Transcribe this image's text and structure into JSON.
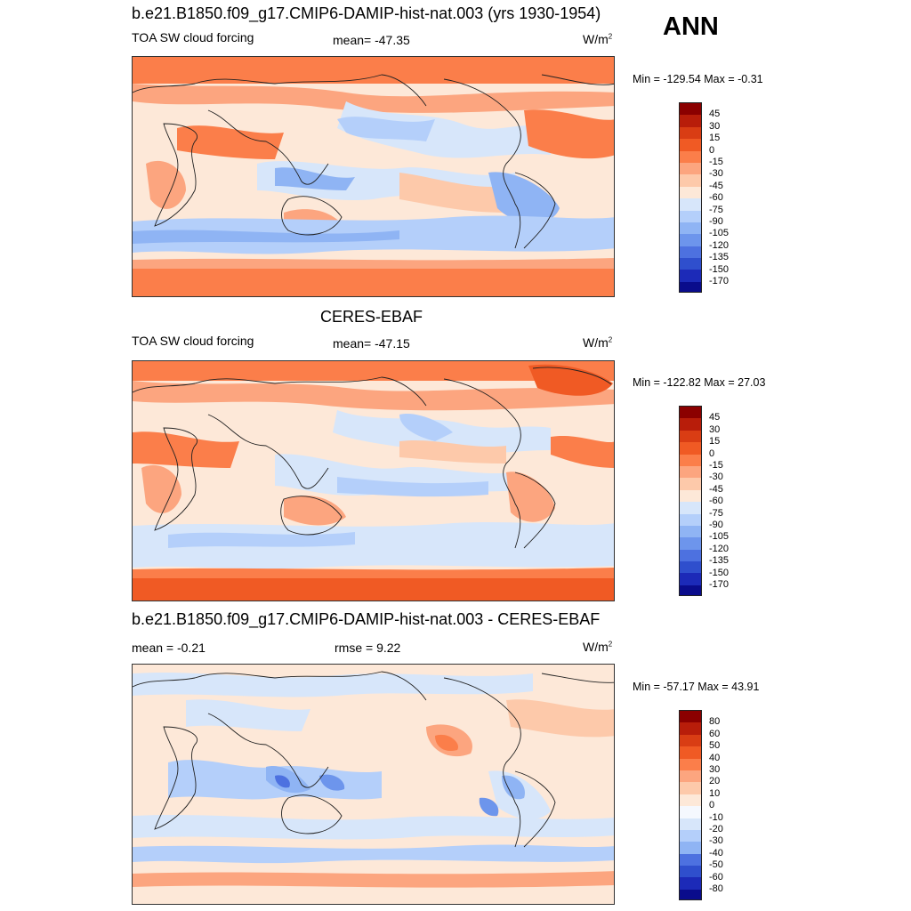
{
  "season": "ANN",
  "panels": [
    {
      "id": "model",
      "title": "b.e21.B1850.f09_g17.CMIP6-DAMIP-hist-nat.003 (yrs 1930-1954)",
      "variable": "TOA SW cloud forcing",
      "mean_label": "mean= -47.35",
      "units_base": "W/m",
      "units_exp": "2",
      "minmax": "Min = -129.54 Max =  -0.31",
      "colorbar": [
        "45",
        "30",
        "15",
        "0",
        "-15",
        "-30",
        "-45",
        "-60",
        "-75",
        "-90",
        "-105",
        "-120",
        "-135",
        "-150",
        "-170"
      ]
    },
    {
      "id": "obs",
      "title": "CERES-EBAF",
      "variable": "TOA SW cloud forcing",
      "mean_label": "mean= -47.15",
      "units_base": "W/m",
      "units_exp": "2",
      "minmax": "Min = -122.82 Max =  27.03",
      "colorbar": [
        "45",
        "30",
        "15",
        "0",
        "-15",
        "-30",
        "-45",
        "-60",
        "-75",
        "-90",
        "-105",
        "-120",
        "-135",
        "-150",
        "-170"
      ]
    },
    {
      "id": "diff",
      "title": "b.e21.B1850.f09_g17.CMIP6-DAMIP-hist-nat.003 - CERES-EBAF",
      "mean_label": "mean =  -0.21",
      "rmse_label": "rmse =   9.22",
      "units_base": "W/m",
      "units_exp": "2",
      "minmax": "Min = -57.17 Max =  43.91",
      "colorbar": [
        "80",
        "60",
        "50",
        "40",
        "30",
        "20",
        "10",
        "0",
        "-10",
        "-20",
        "-30",
        "-40",
        "-50",
        "-60",
        "-80"
      ]
    }
  ],
  "colors": {
    "swatches": [
      "#8b0000",
      "#b81d0a",
      "#d93d14",
      "#f05a24",
      "#fb7e4a",
      "#fca57f",
      "#fdc9aa",
      "#fde8d8",
      "#d7e6fa",
      "#b4cffa",
      "#8fb4f4",
      "#6d95ec",
      "#4d71e0",
      "#2f4fcd",
      "#1c2ab8",
      "#0a0c8c"
    ],
    "land": "#222222"
  }
}
